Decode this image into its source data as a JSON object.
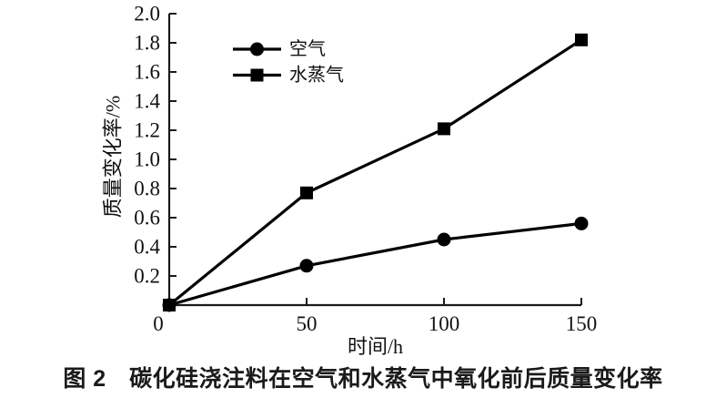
{
  "figure": {
    "caption": "图 2　碳化硅浇注料在空气和水蒸气中氧化前后质量变化率"
  },
  "chart_data": {
    "type": "line",
    "title": "",
    "xlabel": "时间/h",
    "ylabel": "质量变化率/%",
    "x": [
      0,
      50,
      100,
      150
    ],
    "series": [
      {
        "key": "air",
        "name": "空气",
        "marker": "circle",
        "values": [
          0,
          0.27,
          0.45,
          0.56
        ]
      },
      {
        "key": "steam",
        "name": "水蒸气",
        "marker": "square",
        "values": [
          0,
          0.77,
          1.21,
          1.82
        ]
      }
    ],
    "xlim": [
      0,
      150
    ],
    "ylim": [
      0,
      2.0
    ],
    "xticks": [
      0,
      50,
      100,
      150
    ],
    "xtick_labels": [
      "0",
      "50",
      "100",
      "150"
    ],
    "yticks": [
      0.2,
      0.4,
      0.6,
      0.8,
      1.0,
      1.2,
      1.4,
      1.6,
      1.8,
      2.0
    ],
    "ytick_labels": [
      "0.2",
      "0.4",
      "0.6",
      "0.8",
      "1.0",
      "1.2",
      "1.4",
      "1.6",
      "1.8",
      "2.0"
    ],
    "grid": false,
    "legend_position": "upper-left-inside",
    "colors": {
      "line": "#000000",
      "marker": "#000000",
      "axis": "#1a1a1a",
      "text": "#111111",
      "background": "#ffffff"
    }
  }
}
